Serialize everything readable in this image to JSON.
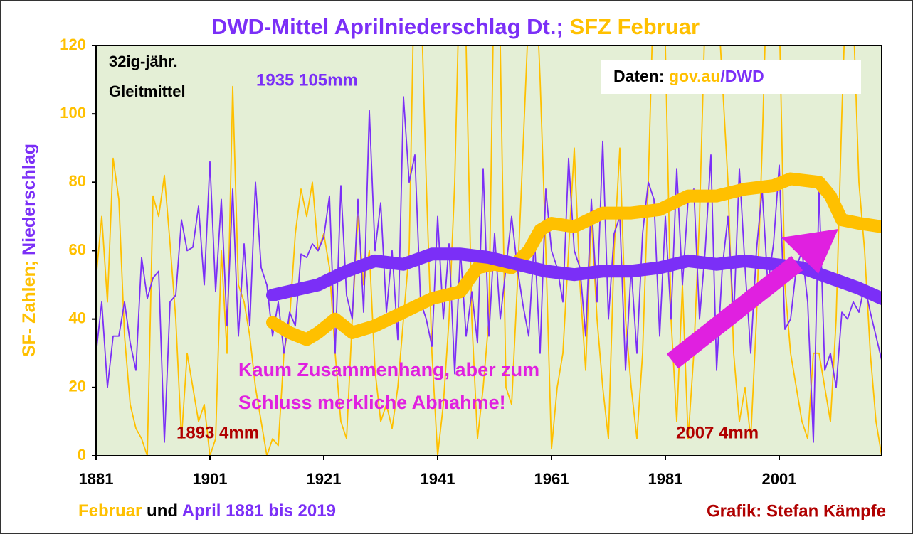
{
  "chart_data": {
    "type": "line",
    "title_parts": [
      {
        "text": "DWD-Mittel Aprilniederschlag Dt.;",
        "color": "#7b2ff7"
      },
      {
        "text": " SFZ Februar",
        "color": "#ffc000"
      }
    ],
    "ylabel_parts": [
      {
        "text": "SF- Zahlen;",
        "color": "#ffc000"
      },
      {
        "text": " Niederschlag",
        "color": "#7b2ff7"
      }
    ],
    "footer_parts": [
      {
        "text": "Februar",
        "color": "#ffc000"
      },
      {
        "text": " und ",
        "color": "#000000"
      },
      {
        "text": "April 1881 bis 2019",
        "color": "#7b2ff7"
      }
    ],
    "credit": {
      "text": "Grafik: Stefan Kämpfe",
      "color": "#b00000"
    },
    "source_parts": [
      {
        "text": "Daten: ",
        "color": "#000000"
      },
      {
        "text": "gov.au",
        "color": "#ffc000"
      },
      {
        "text": "/DWD",
        "color": "#7b2ff7"
      }
    ],
    "annotations": [
      {
        "text": "32ig-jähr.",
        "color": "#000000"
      },
      {
        "text": "Gleitmittel",
        "color": "#000000"
      },
      {
        "text": "1935 105mm",
        "color": "#7b2ff7"
      },
      {
        "text": "Kaum Zusammenhang, aber zum",
        "color": "#e020e0"
      },
      {
        "text": "Schluss merkliche Abnahme!",
        "color": "#e020e0"
      },
      {
        "text": "1893 4mm",
        "color": "#b00000"
      },
      {
        "text": "2007 4mm",
        "color": "#b00000"
      }
    ],
    "background": "#e4efd6",
    "x": [
      1881,
      1882,
      1883,
      1884,
      1885,
      1886,
      1887,
      1888,
      1889,
      1890,
      1891,
      1892,
      1893,
      1894,
      1895,
      1896,
      1897,
      1898,
      1899,
      1900,
      1901,
      1902,
      1903,
      1904,
      1905,
      1906,
      1907,
      1908,
      1909,
      1910,
      1911,
      1912,
      1913,
      1914,
      1915,
      1916,
      1917,
      1918,
      1919,
      1920,
      1921,
      1922,
      1923,
      1924,
      1925,
      1926,
      1927,
      1928,
      1929,
      1930,
      1931,
      1932,
      1933,
      1934,
      1935,
      1936,
      1937,
      1938,
      1939,
      1940,
      1941,
      1942,
      1943,
      1944,
      1945,
      1946,
      1947,
      1948,
      1949,
      1950,
      1951,
      1952,
      1953,
      1954,
      1955,
      1956,
      1957,
      1958,
      1959,
      1960,
      1961,
      1962,
      1963,
      1964,
      1965,
      1966,
      1967,
      1968,
      1969,
      1970,
      1971,
      1972,
      1973,
      1974,
      1975,
      1976,
      1977,
      1978,
      1979,
      1980,
      1981,
      1982,
      1983,
      1984,
      1985,
      1986,
      1987,
      1988,
      1989,
      1990,
      1991,
      1992,
      1993,
      1994,
      1995,
      1996,
      1997,
      1998,
      1999,
      2000,
      2001,
      2002,
      2003,
      2004,
      2005,
      2006,
      2007,
      2008,
      2009,
      2010,
      2011,
      2012,
      2013,
      2014,
      2015,
      2016,
      2017,
      2018,
      2019
    ],
    "series": [
      {
        "color": "#ffc000",
        "width": 1.8,
        "values": [
          52,
          70,
          45,
          87,
          75,
          35,
          15,
          8,
          5,
          0,
          76,
          70,
          82,
          62,
          40,
          5,
          30,
          20,
          10,
          15,
          0,
          5,
          60,
          30,
          108,
          50,
          45,
          35,
          20,
          10,
          0,
          5,
          3,
          30,
          40,
          65,
          78,
          70,
          80,
          60,
          65,
          55,
          30,
          10,
          5,
          40,
          70,
          50,
          60,
          25,
          10,
          15,
          8,
          20,
          40,
          60,
          150,
          140,
          80,
          30,
          0,
          15,
          40,
          80,
          150,
          120,
          40,
          5,
          20,
          40,
          150,
          120,
          20,
          15,
          50,
          90,
          130,
          150,
          110,
          60,
          2,
          20,
          30,
          60,
          90,
          50,
          25,
          70,
          40,
          20,
          5,
          60,
          90,
          40,
          20,
          5,
          30,
          80,
          140,
          150,
          120,
          40,
          10,
          50,
          5,
          30,
          70,
          130,
          150,
          140,
          110,
          80,
          30,
          10,
          20,
          5,
          40,
          90,
          150,
          150,
          130,
          50,
          30,
          20,
          10,
          5,
          30,
          30,
          20,
          10,
          40,
          100,
          150,
          130,
          80,
          60,
          30,
          10,
          0
        ]
      },
      {
        "color": "#7b2ff7",
        "width": 1.8,
        "values": [
          30,
          45,
          20,
          35,
          35,
          45,
          33,
          25,
          58,
          46,
          52,
          54,
          4,
          45,
          47,
          69,
          60,
          61,
          73,
          50,
          86,
          48,
          75,
          38,
          78,
          35,
          62,
          38,
          80,
          55,
          50,
          35,
          45,
          30,
          42,
          38,
          59,
          58,
          62,
          60,
          64,
          76,
          30,
          79,
          47,
          40,
          75,
          42,
          101,
          60,
          74,
          42,
          60,
          34,
          105,
          80,
          88,
          45,
          40,
          32,
          70,
          40,
          62,
          24,
          60,
          35,
          48,
          33,
          84,
          35,
          65,
          40,
          55,
          70,
          55,
          44,
          35,
          64,
          30,
          78,
          60,
          55,
          45,
          87,
          60,
          55,
          35,
          75,
          45,
          92,
          40,
          65,
          70,
          25,
          55,
          30,
          65,
          80,
          75,
          35,
          70,
          40,
          84,
          50,
          75,
          78,
          40,
          60,
          88,
          25,
          55,
          70,
          40,
          84,
          55,
          30,
          60,
          78,
          50,
          62,
          85,
          37,
          40,
          55,
          60,
          45,
          4,
          78,
          25,
          30,
          20,
          42,
          40,
          45,
          42,
          50,
          42,
          35,
          28
        ]
      },
      {
        "color": "#ffc000",
        "width": 18,
        "x": [
          1912,
          1915,
          1918,
          1920,
          1923,
          1926,
          1930,
          1935,
          1940,
          1945,
          1948,
          1951,
          1954,
          1957,
          1959,
          1961,
          1965,
          1970,
          1975,
          1980,
          1985,
          1990,
          1995,
          2000,
          2003,
          2008,
          2010,
          2012,
          2015,
          2019
        ],
        "values": [
          39,
          36,
          34,
          36,
          40,
          36,
          38,
          42,
          46,
          48,
          55,
          56,
          55,
          60,
          66,
          68,
          67,
          71,
          71,
          72,
          76,
          76,
          78,
          79,
          81,
          80,
          76,
          69,
          68,
          67
        ]
      },
      {
        "color": "#7b2ff7",
        "width": 18,
        "x": [
          1912,
          1920,
          1925,
          1930,
          1935,
          1940,
          1945,
          1950,
          1955,
          1960,
          1965,
          1970,
          1975,
          1980,
          1985,
          1990,
          1995,
          2000,
          2005,
          2010,
          2015,
          2019
        ],
        "values": [
          47,
          50,
          54,
          57,
          56,
          59,
          59,
          58,
          56,
          54,
          53,
          54,
          54,
          55,
          57,
          56,
          57,
          56,
          55,
          52,
          49,
          46
        ]
      }
    ],
    "xlim": [
      1881,
      2019
    ],
    "xticks": [
      1881,
      1901,
      1921,
      1941,
      1961,
      1981,
      2001
    ],
    "ylim": [
      0,
      120
    ],
    "yticks": [
      0,
      20,
      40,
      60,
      80,
      100,
      120
    ]
  }
}
